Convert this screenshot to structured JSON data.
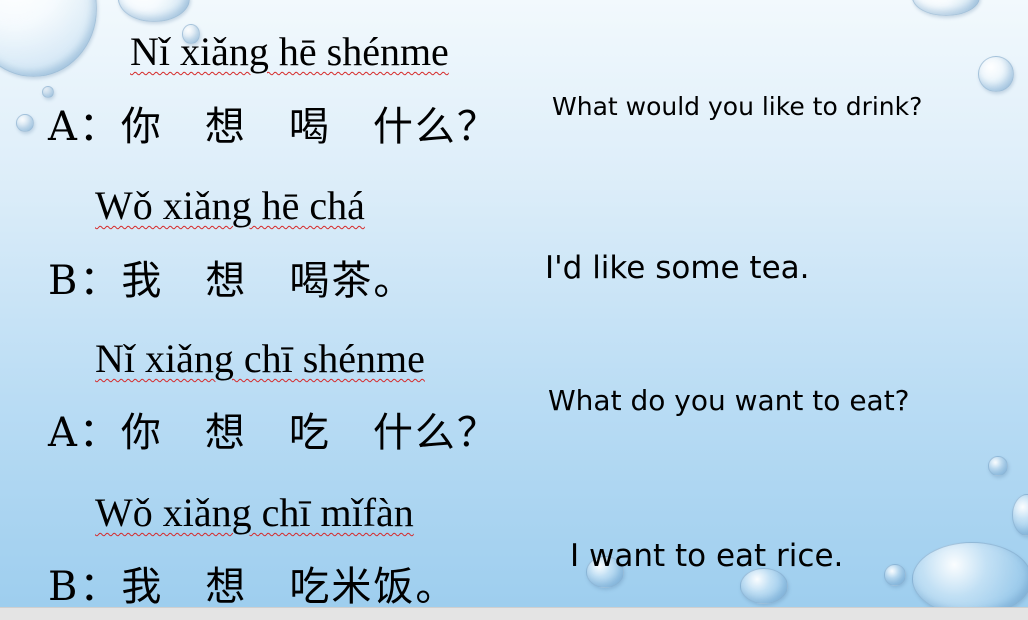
{
  "slide": {
    "lines": [
      {
        "kind": "pinyin",
        "text": "Nǐ xiǎng hē shénme"
      },
      {
        "kind": "hanzi",
        "text": "A：你　想　喝　什么？"
      },
      {
        "kind": "pinyin",
        "text": "Wǒ xiǎng hē chá"
      },
      {
        "kind": "hanzi",
        "text": "B：我　想　喝茶。"
      },
      {
        "kind": "pinyin",
        "text": "Nǐ xiǎng chī shénme"
      },
      {
        "kind": "hanzi",
        "text": "A：你　想　吃　什么？"
      },
      {
        "kind": "pinyin",
        "text": "Wǒ xiǎng chī mǐfàn"
      },
      {
        "kind": "hanzi",
        "text": "B：我　想　吃米饭。"
      }
    ],
    "translations": [
      "What would you like to drink?",
      "I'd like some tea.",
      "What do you want to eat?",
      "I want to eat rice."
    ],
    "colors": {
      "background_top": "#f2f9fd",
      "background_bottom": "#9ccdee",
      "spellcheck_underline": "#d62828"
    }
  }
}
